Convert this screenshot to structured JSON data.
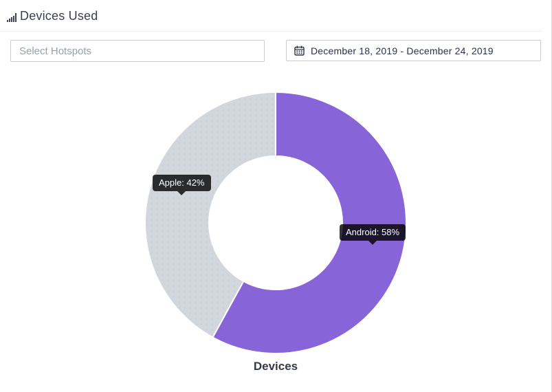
{
  "header": {
    "title": "Devices Used"
  },
  "controls": {
    "hotspot_placeholder": "Select Hotspots",
    "date_range": "December 18, 2019 - December 24, 2019"
  },
  "chart_data": {
    "type": "pie",
    "subtype": "doughnut",
    "title": "Devices",
    "labels": [
      "Android",
      "Apple"
    ],
    "values": [
      58,
      42
    ],
    "unit": "%",
    "colors": [
      "#8765d8",
      "#d2d6dd"
    ],
    "pattern": [
      false,
      true
    ],
    "pattern_dot_color": "#c3c7cf",
    "border_color": "#ffffff",
    "tooltip_bg": "rgba(0,0,0,0.8)",
    "cutout_ratio": 0.51,
    "start_angle_deg": 0,
    "direction": "clockwise",
    "legend_position": "none",
    "tooltips": [
      "Android: 58%",
      "Apple: 42%"
    ]
  }
}
